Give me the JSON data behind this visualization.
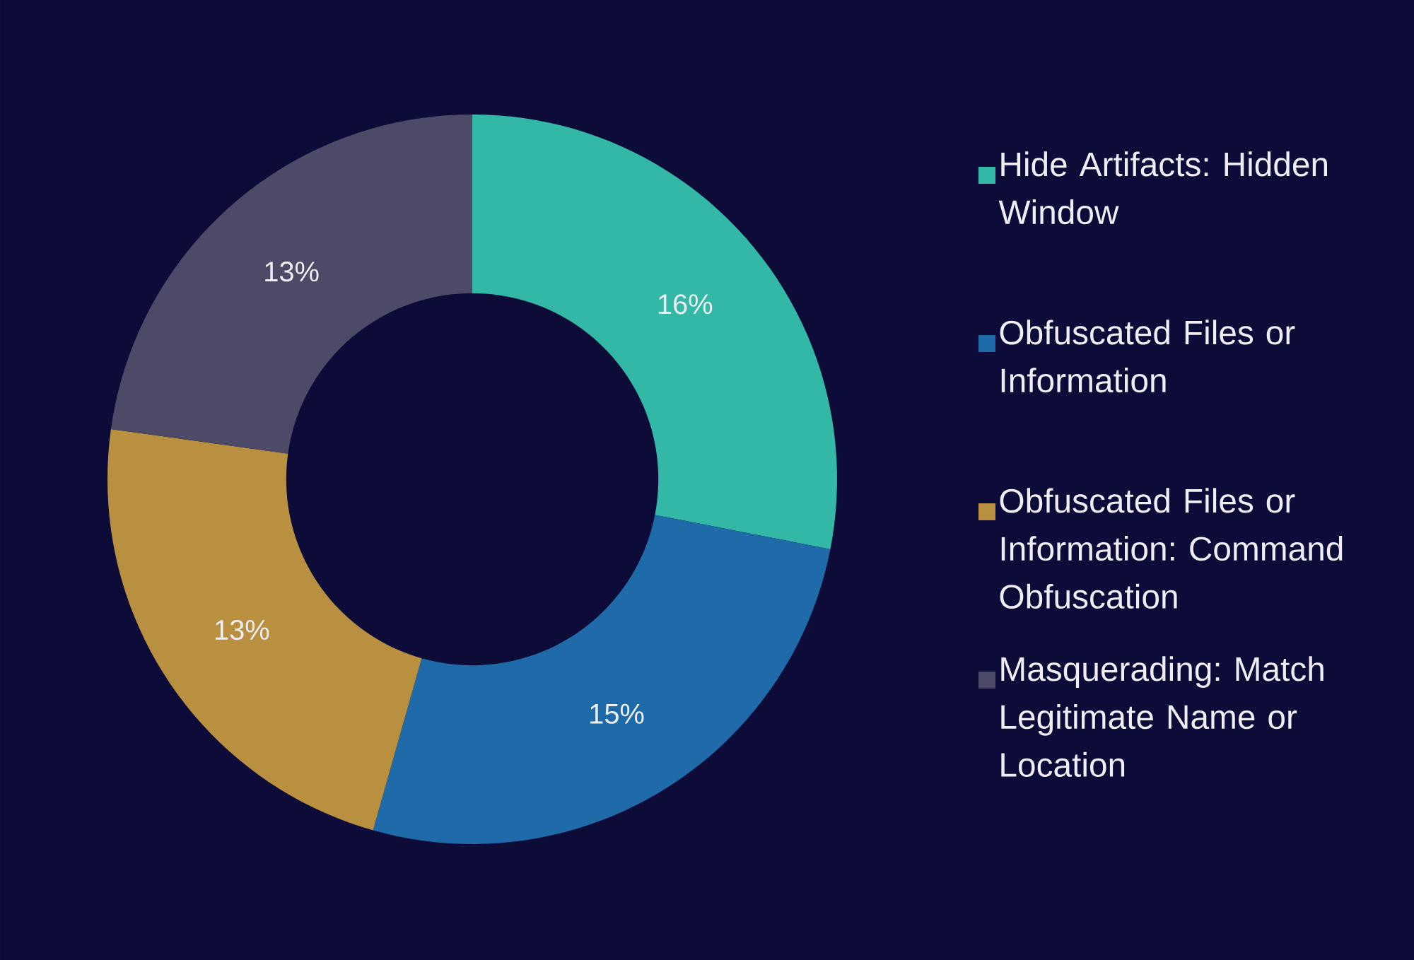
{
  "chart_data": {
    "type": "donut",
    "categories": [
      "Hide Artifacts: Hidden Window",
      "Obfuscated Files or Information",
      "Obfuscated Files or Information: Command Obfuscation",
      "Masquerading: Match Legitimate Name or Location"
    ],
    "values": [
      16,
      15,
      13,
      13
    ],
    "colors": [
      "#33b8a6",
      "#1f6aa8",
      "#b89040",
      "#4c4a66"
    ],
    "value_labels": [
      "16%",
      "15%",
      "13%",
      "13%"
    ],
    "legend": "right"
  }
}
